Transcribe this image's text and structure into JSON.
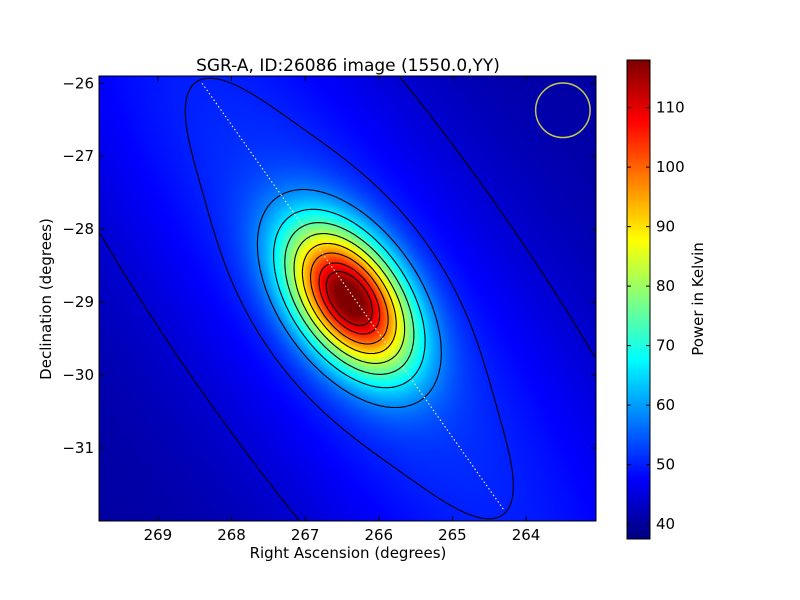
{
  "chart_data": {
    "type": "heatmap",
    "title": "SGR-A, ID:26086 image (1550.0,YY)",
    "xlabel": "Right Ascension (degrees)",
    "ylabel": "Declination (degrees)",
    "colorbar_label": "Power in Kelvin",
    "colormap": "jet",
    "x_direction": "decreasing",
    "xlim": [
      269.8,
      263.05
    ],
    "ylim": [
      -32.0,
      -25.9
    ],
    "x_ticks": [
      269,
      268,
      267,
      266,
      265,
      264
    ],
    "y_ticks": [
      -26,
      -27,
      -28,
      -29,
      -30,
      -31
    ],
    "x_tick_labels": [
      "269",
      "268",
      "267",
      "266",
      "265",
      "264"
    ],
    "y_tick_labels": [
      "−26",
      "−27",
      "−28",
      "−29",
      "−30",
      "−31"
    ],
    "color_range": [
      37.5,
      118
    ],
    "colorbar_ticks": [
      40,
      50,
      60,
      70,
      80,
      90,
      100,
      110
    ],
    "colorbar_tick_labels": [
      "40",
      "50",
      "60",
      "70",
      "80",
      "90",
      "100",
      "110"
    ],
    "peak": {
      "ra": 266.4,
      "dec": -28.95,
      "value": 117
    },
    "background_level": 40,
    "contours": true,
    "galactic_plane_line": {
      "color": "#e8e8c0",
      "points": [
        [
          268.4,
          -26.0
        ],
        [
          264.3,
          -31.85
        ]
      ]
    },
    "beam_circle": {
      "ra": 263.5,
      "dec": -26.37,
      "radius_deg": 0.37,
      "color": "#c8c850"
    }
  }
}
